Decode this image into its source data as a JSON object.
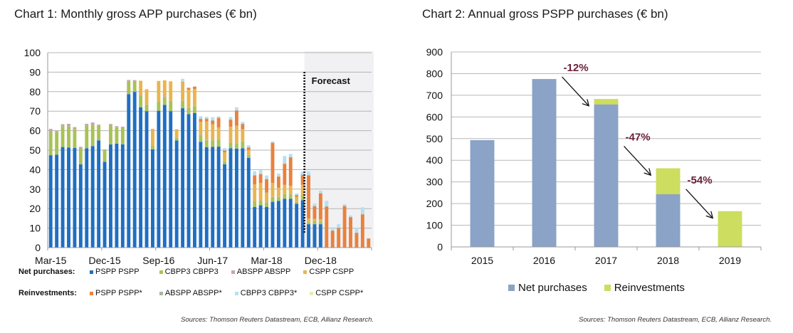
{
  "chart_data": [
    {
      "type": "bar",
      "stacked": true,
      "title": "Chart 1: Monthly gross APP purchases (€ bn)",
      "xlabel": "",
      "ylabel": "",
      "ylim": [
        0,
        100
      ],
      "yticks": [
        0,
        10,
        20,
        30,
        40,
        50,
        60,
        70,
        80,
        90,
        100
      ],
      "xtick_labels": [
        "Mar-15",
        "Dec-15",
        "Sep-16",
        "Jun-17",
        "Mar-18",
        "Dec-18"
      ],
      "grid": true,
      "annotation": "Forecast",
      "forecast_start": "Oct-18",
      "categories": [
        "Mar-15",
        "Apr-15",
        "May-15",
        "Jun-15",
        "Jul-15",
        "Aug-15",
        "Sep-15",
        "Oct-15",
        "Nov-15",
        "Dec-15",
        "Jan-16",
        "Feb-16",
        "Mar-16",
        "Apr-16",
        "May-16",
        "Jun-16",
        "Jul-16",
        "Aug-16",
        "Sep-16",
        "Oct-16",
        "Nov-16",
        "Dec-16",
        "Jan-17",
        "Feb-17",
        "Mar-17",
        "Apr-17",
        "May-17",
        "Jun-17",
        "Jul-17",
        "Aug-17",
        "Sep-17",
        "Oct-17",
        "Nov-17",
        "Dec-17",
        "Jan-18",
        "Feb-18",
        "Mar-18",
        "Apr-18",
        "May-18",
        "Jun-18",
        "Jul-18",
        "Aug-18",
        "Sep-18",
        "Oct-18",
        "Nov-18",
        "Dec-18",
        "Jan-19",
        "Feb-19",
        "Mar-19",
        "Apr-19",
        "May-19",
        "Jun-19",
        "Jul-19",
        "Aug-19"
      ],
      "series": [
        {
          "name": "PSPP PSPP",
          "group": "Net purchases",
          "color": "#1f6fc2",
          "values": [
            47.4,
            47.7,
            51.6,
            51.3,
            51.2,
            42.7,
            51,
            52.1,
            55,
            44,
            52.9,
            53.3,
            53,
            78.7,
            79.9,
            72,
            70,
            50.4,
            70.2,
            73.2,
            70,
            55,
            71.5,
            68.5,
            69,
            54.3,
            51.5,
            51.7,
            51.8,
            42.8,
            51,
            50.8,
            51,
            46,
            20.9,
            21.7,
            20.9,
            23.5,
            24,
            25,
            25,
            22.5,
            24.3,
            12,
            12,
            12,
            0,
            0,
            0,
            0,
            0,
            0,
            0,
            0
          ]
        },
        {
          "name": "CBPP3 CBPP3",
          "group": "Net purchases",
          "color": "#a9c256",
          "values": [
            12.5,
            11.5,
            10.7,
            11,
            9.6,
            8.2,
            11.5,
            10.8,
            7.5,
            6,
            9.5,
            8.3,
            8.3,
            6.8,
            5.5,
            6,
            3.3,
            2,
            4.5,
            4,
            5,
            1.2,
            3.5,
            3.3,
            3.5,
            3.5,
            3.5,
            3.2,
            3.5,
            1.5,
            2.8,
            2.5,
            3.5,
            1.5,
            2.8,
            2.2,
            2.3,
            2.5,
            2,
            2.5,
            2.5,
            1,
            2.5,
            1,
            1.5,
            1.3,
            0,
            0,
            0,
            0,
            0,
            0,
            0,
            0
          ]
        },
        {
          "name": "ABSPP ABSPP",
          "group": "Net purchases",
          "color": "#c9a3b0",
          "values": [
            1,
            0.8,
            1,
            1.2,
            1,
            0.8,
            1,
            1.3,
            0.6,
            0.4,
            1,
            0.7,
            0.7,
            0.5,
            0.5,
            0.3,
            0.2,
            0,
            0.3,
            0.3,
            0.3,
            0,
            0.3,
            0.2,
            0.2,
            0.2,
            0.2,
            0.2,
            0.2,
            0.1,
            0.2,
            0.2,
            0.2,
            0.1,
            0.2,
            0.2,
            0.1,
            0.2,
            0.2,
            0.2,
            0.2,
            0.1,
            0.2,
            0,
            0,
            0,
            0,
            0,
            0,
            0,
            0,
            0,
            0,
            0
          ]
        },
        {
          "name": "CSPP CSPP",
          "group": "Net purchases",
          "color": "#e9b54f",
          "values": [
            0,
            0,
            0,
            0,
            0,
            0,
            0,
            0,
            0,
            0,
            0,
            0,
            0,
            0,
            0,
            7.3,
            7.7,
            8.5,
            10.5,
            8.3,
            10,
            4.5,
            9.5,
            9,
            8.7,
            6.5,
            9.5,
            8.2,
            6.2,
            4.5,
            8,
            9,
            6,
            2.5,
            8.5,
            9,
            5,
            7,
            4.5,
            4.5,
            4,
            2.5,
            5.2,
            2,
            1.2,
            1.2,
            0,
            0,
            0,
            0,
            0,
            0,
            0,
            0
          ]
        },
        {
          "name": "PSPP PSPP*",
          "group": "Reinvestments",
          "color": "#e8823f",
          "values": [
            0,
            0,
            0,
            0,
            0,
            0,
            0,
            0,
            0,
            0,
            0,
            0,
            0,
            0,
            0,
            0,
            0,
            0,
            0,
            0,
            0,
            0,
            0.3,
            1,
            1.2,
            1.5,
            1.3,
            1.8,
            4.7,
            0.8,
            3.5,
            7.8,
            2.6,
            1.2,
            4.6,
            4.6,
            6.8,
            20.5,
            5.7,
            10.8,
            14.6,
            0.7,
            5,
            22,
            6.5,
            13.3,
            21,
            8.6,
            10,
            21.3,
            15.5,
            7.5,
            17,
            4.7
          ]
        },
        {
          "name": "ABSPP ABSPP*",
          "group": "Reinvestments",
          "color": "#a8b8a0",
          "values": [
            0,
            0,
            0,
            0,
            0,
            0,
            0,
            0,
            0,
            0,
            0,
            0,
            0,
            0,
            0,
            0,
            0,
            0,
            0,
            0,
            0,
            0,
            0,
            0,
            0,
            0.2,
            0.3,
            0.3,
            0.3,
            0.3,
            0.2,
            0.2,
            0.2,
            0.2,
            0.2,
            0.2,
            0.2,
            0.2,
            0.2,
            0.2,
            0.2,
            0.2,
            0.2,
            0.2,
            0.2,
            0.2,
            0.2,
            0.2,
            0.2,
            0.2,
            0.2,
            0.2,
            0.2,
            0
          ]
        },
        {
          "name": "CBPP3 CBPP3*",
          "group": "Reinvestments",
          "color": "#b5e0f2",
          "values": [
            0,
            0,
            0,
            0,
            0,
            0,
            0,
            0,
            0,
            0,
            0,
            0,
            0,
            0,
            0,
            0,
            0,
            0,
            0,
            0,
            0,
            0,
            1.5,
            0,
            0,
            1.2,
            0.8,
            1.5,
            0.6,
            1,
            1.3,
            1.5,
            1,
            1,
            2,
            1.8,
            1.7,
            0.6,
            1.4,
            3.8,
            1.5,
            0.8,
            1.6,
            1.8,
            1.2,
            1.2,
            2.8,
            1.6,
            1.8,
            0.8,
            0.8,
            2.5,
            3.5,
            0
          ]
        },
        {
          "name": "CSPP CSPP*",
          "group": "Reinvestments",
          "color": "#e6edb8",
          "values": [
            0,
            0,
            0,
            0,
            0,
            0,
            0,
            0,
            0,
            0,
            0,
            0,
            0,
            0,
            0,
            0,
            0,
            0,
            0,
            0,
            0,
            0,
            0,
            0,
            0,
            0,
            0,
            0,
            0,
            0,
            0,
            0,
            0,
            0,
            0,
            0,
            0,
            0,
            0,
            0,
            0,
            0,
            0,
            0,
            0,
            0,
            0,
            0,
            0,
            0,
            0,
            0,
            0,
            0
          ]
        }
      ],
      "legend": {
        "position": "bottom",
        "net_label": "Net purchases:",
        "reinv_label": "Reinvestments:",
        "net_items": [
          "PSPP PSPP",
          "CBPP3 CBPP3",
          "ABSPP ABSPP",
          "CSPP CSPP"
        ],
        "reinv_items": [
          "PSPP PSPP*",
          "ABSPP ABSPP*",
          "CBPP3 CBPP3*",
          "CSPP CSPP*"
        ]
      },
      "source": "Sources: Thomson Reuters Datastream, ECB, Allianz Research."
    },
    {
      "type": "bar",
      "stacked": true,
      "title": "Chart 2: Annual gross PSPP purchases (€ bn)",
      "xlabel": "",
      "ylabel": "",
      "ylim": [
        0,
        900
      ],
      "yticks": [
        0,
        100,
        200,
        300,
        400,
        500,
        600,
        700,
        800,
        900
      ],
      "grid": true,
      "categories": [
        "2015",
        "2016",
        "2017",
        "2018",
        "2019"
      ],
      "series": [
        {
          "name": "Net purchases",
          "color": "#8aa3c6",
          "values": [
            493,
            775,
            658,
            243,
            0
          ]
        },
        {
          "name": "Reinvestments",
          "color": "#cddd5f",
          "values": [
            0,
            0,
            25,
            120,
            165
          ]
        }
      ],
      "annotations": [
        {
          "text": "-12%",
          "from": "2016",
          "to": "2017"
        },
        {
          "text": "-47%",
          "from": "2017",
          "to": "2018"
        },
        {
          "text": "-54%",
          "from": "2018",
          "to": "2019"
        }
      ],
      "annotation_color": "#6b1f3a",
      "legend": {
        "position": "bottom",
        "items": [
          "Net purchases",
          "Reinvestments"
        ]
      },
      "source": "Sources: Thomson Reuters Datastream, ECB, Allianz Research."
    }
  ]
}
